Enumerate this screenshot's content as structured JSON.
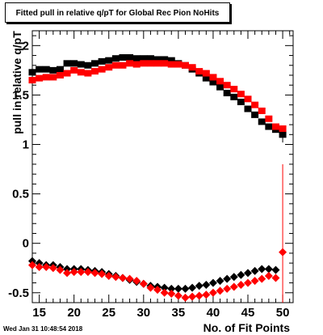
{
  "header": {
    "title": "Fitted pull in relative q/pT for Global Rec Pion NoHits"
  },
  "footer": {
    "timestamp": "Wed Jan 31 10:48:54 2018"
  },
  "chart_data": {
    "type": "scatter",
    "title": "Fitted pull in relative q/pT for Global Rec Pion NoHits",
    "xlabel": "No. of Fit Points",
    "ylabel": "pull in relative q/pT",
    "xlim": [
      14,
      51.5
    ],
    "ylim": [
      -0.6,
      2.15
    ],
    "xticks": [
      15,
      20,
      25,
      30,
      35,
      40,
      45,
      50
    ],
    "yticks": [
      -0.5,
      0,
      0.5,
      1,
      1.5,
      2
    ],
    "ytick_labels": [
      "-0.5",
      "0",
      "0.5",
      "1",
      "1.5",
      "2"
    ],
    "grid": false,
    "legend": "none",
    "series": [
      {
        "marker": "square",
        "color": "#000000",
        "x": [
          14,
          15,
          16,
          17,
          18,
          19,
          20,
          21,
          22,
          23,
          24,
          25,
          26,
          27,
          28,
          29,
          30,
          31,
          32,
          33,
          34,
          35,
          36,
          37,
          38,
          39,
          40,
          41,
          42,
          43,
          44,
          45,
          46,
          47,
          48,
          49,
          50
        ],
        "y": [
          1.73,
          1.76,
          1.76,
          1.75,
          1.76,
          1.82,
          1.82,
          1.81,
          1.8,
          1.82,
          1.84,
          1.85,
          1.87,
          1.88,
          1.88,
          1.87,
          1.87,
          1.87,
          1.86,
          1.86,
          1.85,
          1.82,
          1.8,
          1.76,
          1.72,
          1.67,
          1.63,
          1.58,
          1.52,
          1.48,
          1.43,
          1.36,
          1.3,
          1.23,
          1.18,
          1.15,
          1.1
        ]
      },
      {
        "marker": "square",
        "color": "#ff0000",
        "x": [
          14,
          15,
          16,
          17,
          18,
          19,
          20,
          21,
          22,
          23,
          24,
          25,
          26,
          27,
          28,
          29,
          30,
          31,
          32,
          33,
          34,
          35,
          36,
          37,
          38,
          39,
          40,
          41,
          42,
          43,
          44,
          45,
          46,
          47,
          48,
          49,
          50
        ],
        "y": [
          1.65,
          1.67,
          1.68,
          1.68,
          1.7,
          1.72,
          1.75,
          1.73,
          1.72,
          1.74,
          1.76,
          1.78,
          1.8,
          1.8,
          1.82,
          1.81,
          1.82,
          1.82,
          1.82,
          1.82,
          1.81,
          1.81,
          1.8,
          1.78,
          1.74,
          1.72,
          1.68,
          1.64,
          1.6,
          1.56,
          1.51,
          1.46,
          1.4,
          1.34,
          1.26,
          1.18,
          1.16
        ]
      },
      {
        "marker": "diamond",
        "color": "#000000",
        "x": [
          14,
          15,
          16,
          17,
          18,
          19,
          20,
          21,
          22,
          23,
          24,
          25,
          26,
          27,
          28,
          29,
          30,
          31,
          32,
          33,
          34,
          35,
          36,
          37,
          38,
          39,
          40,
          41,
          42,
          43,
          44,
          45,
          46,
          47,
          48,
          49
        ],
        "y": [
          -0.18,
          -0.2,
          -0.22,
          -0.22,
          -0.24,
          -0.26,
          -0.26,
          -0.26,
          -0.27,
          -0.28,
          -0.29,
          -0.31,
          -0.33,
          -0.35,
          -0.37,
          -0.39,
          -0.41,
          -0.43,
          -0.44,
          -0.45,
          -0.46,
          -0.46,
          -0.46,
          -0.45,
          -0.43,
          -0.42,
          -0.4,
          -0.38,
          -0.36,
          -0.34,
          -0.32,
          -0.3,
          -0.28,
          -0.26,
          -0.26,
          -0.27
        ]
      },
      {
        "marker": "diamond",
        "color": "#ff0000",
        "x": [
          14,
          15,
          16,
          17,
          18,
          19,
          20,
          21,
          22,
          23,
          24,
          25,
          26,
          27,
          28,
          29,
          30,
          31,
          32,
          33,
          34,
          35,
          36,
          37,
          38,
          39,
          40,
          41,
          42,
          43,
          44,
          45,
          46,
          47,
          48,
          49,
          50
        ],
        "y": [
          -0.22,
          -0.24,
          -0.24,
          -0.25,
          -0.27,
          -0.3,
          -0.29,
          -0.29,
          -0.29,
          -0.3,
          -0.31,
          -0.33,
          -0.34,
          -0.35,
          -0.36,
          -0.38,
          -0.41,
          -0.45,
          -0.47,
          -0.5,
          -0.51,
          -0.53,
          -0.55,
          -0.54,
          -0.53,
          -0.52,
          -0.5,
          -0.48,
          -0.46,
          -0.44,
          -0.42,
          -0.4,
          -0.38,
          -0.36,
          -0.33,
          -0.35,
          -0.09
        ]
      }
    ],
    "error_bars": [
      {
        "x": 50,
        "y_low": -0.6,
        "y_high": 0.8,
        "color": "#ff0000"
      },
      {
        "x": 50,
        "y_low": 1.02,
        "y_high": 1.18,
        "color": "#000000"
      }
    ]
  }
}
